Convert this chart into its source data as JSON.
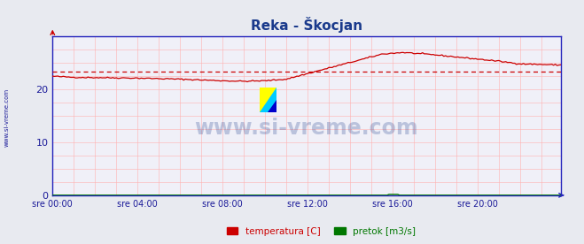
{
  "title": "Reka - Škocjan",
  "title_color": "#1a3a8c",
  "bg_color": "#e8eaf0",
  "plot_bg_color": "#f0f0f8",
  "grid_color_h": "#ffb0b0",
  "grid_color_v": "#ffb0b0",
  "axis_color": "#2222bb",
  "text_color": "#1a1a99",
  "xlim": [
    0,
    287
  ],
  "ylim": [
    0,
    30
  ],
  "yticks": [
    0,
    10,
    20
  ],
  "xtick_labels": [
    "sre 00:00",
    "sre 04:00",
    "sre 08:00",
    "sre 12:00",
    "sre 16:00",
    "sre 20:00"
  ],
  "xtick_positions": [
    0,
    48,
    96,
    144,
    192,
    240
  ],
  "temp_color": "#cc0000",
  "pretok_color": "#007700",
  "avg_color": "#cc0000",
  "watermark": "www.si-vreme.com",
  "legend_temp": "temperatura [C]",
  "legend_pretok": "pretok [m3/s]",
  "side_label": "www.si-vreme.com",
  "avg_val": 23.4
}
